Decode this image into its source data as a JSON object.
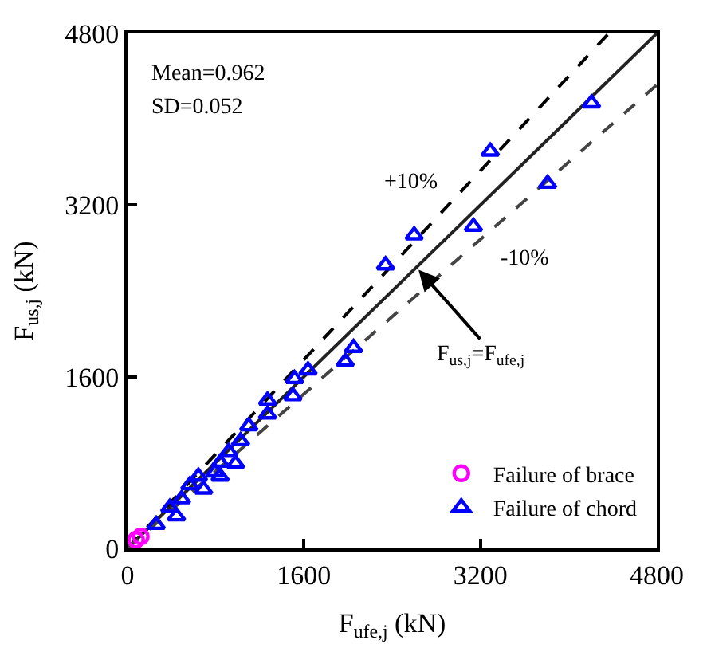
{
  "chart_data": {
    "type": "scatter",
    "xlabel": "F$_{ufe,j}$ (kN)",
    "ylabel": "F$_{us,j}$ (kN)",
    "xlim": [
      0,
      4800
    ],
    "ylim": [
      0,
      4800
    ],
    "xticks": [
      0,
      1600,
      3200,
      4800
    ],
    "yticks": [
      0,
      1600,
      3200,
      4800
    ],
    "legend": "bottom right",
    "series": [
      {
        "type": "line",
        "color": "#222222",
        "line_style": "solid",
        "marker": "none",
        "x": [
          0,
          4800
        ],
        "values": [
          0,
          4800
        ]
      },
      {
        "type": "line",
        "color": "#000000",
        "line_style": "dashed",
        "marker": "none",
        "x": [
          0,
          4364
        ],
        "values": [
          0,
          4800
        ]
      },
      {
        "type": "line",
        "color": "#444444",
        "line_style": "dashed",
        "marker": "none",
        "x": [
          0,
          4800
        ],
        "values": [
          0,
          4320
        ]
      },
      {
        "name": "Failure of brace",
        "color": "#ff00ff",
        "marker": "circle",
        "x": [
          77,
          120
        ],
        "values": [
          80,
          110
        ]
      },
      {
        "name": "Failure of chord",
        "color": "#0000ff",
        "marker": "triangle",
        "x": [
          4208,
          3290,
          3810,
          3137,
          2600,
          2340,
          2050,
          1975,
          1637,
          1515,
          1500,
          1270,
          1270,
          1100,
          1025,
          918,
          840,
          795,
          643,
          566,
          690,
          490,
          383,
          444,
          260,
          840,
          980
        ],
        "values": [
          4150,
          3700,
          3400,
          3000,
          2920,
          2640,
          1870,
          1740,
          1660,
          1580,
          1420,
          1380,
          1250,
          1140,
          1000,
          900,
          800,
          710,
          670,
          590,
          550,
          460,
          380,
          300,
          220,
          670,
          790
        ]
      }
    ],
    "annotations": [
      "Mean=0.962",
      "SD=0.052",
      "+10%",
      "-10%",
      {
        "text": "F$_{us,j}$=F$_{ufe,j}$",
        "x": 2620,
        "y": 2620
      }
    ]
  }
}
